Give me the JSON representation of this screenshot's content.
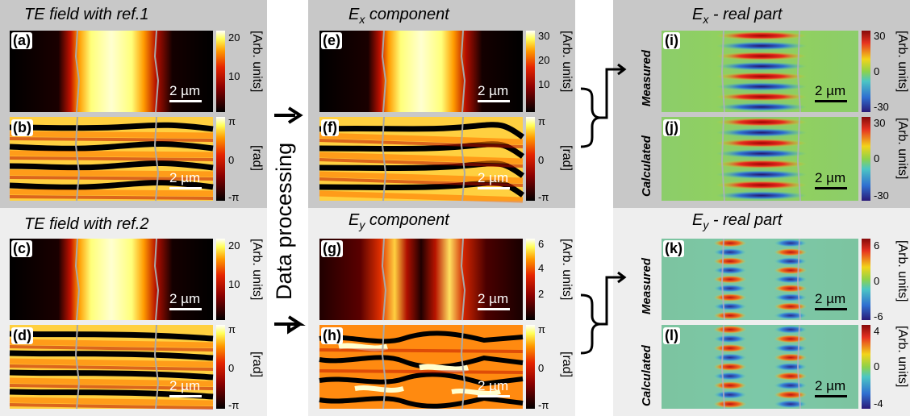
{
  "group_titles": {
    "te_ref1": "TE field with ref.1",
    "te_ref2": "TE field with ref.2",
    "ex_component_main": "E",
    "ex_component_sub": "x",
    "ex_component_rest": " component",
    "ey_component_main": "E",
    "ey_component_sub": "y",
    "ey_component_rest": " component",
    "ex_real_main": "E",
    "ex_real_sub": "x",
    "ex_real_rest": " - real part",
    "ey_real_main": "E",
    "ey_real_sub": "y",
    "ey_real_rest": " - real part"
  },
  "panel_tags": [
    "(a)",
    "(b)",
    "(c)",
    "(d)",
    "(e)",
    "(f)",
    "(g)",
    "(h)",
    "(i)",
    "(j)",
    "(k)",
    "(l)"
  ],
  "scale_bar": "2 µm",
  "process_label": "Data processing",
  "row_labels": {
    "measured": "Measured",
    "calculated": "Calculated"
  },
  "units": {
    "amplitude": "[Arb. units]",
    "phase": "[rad]"
  },
  "colorbar_ticks": {
    "a": [
      "20",
      "10"
    ],
    "c": [
      "20",
      "10"
    ],
    "e": [
      "30",
      "20",
      "10"
    ],
    "g": [
      "6",
      "4",
      "2"
    ],
    "phase": [
      "π",
      "0",
      "-π"
    ],
    "i": [
      "30",
      "0",
      "-30"
    ],
    "j": [
      "30",
      "0",
      "-30"
    ],
    "k": [
      "6",
      "0",
      "-6"
    ],
    "l": [
      "4",
      "0",
      "-4"
    ]
  },
  "colors": {
    "group_bg": "#c8c8c8",
    "group_bg_light": "#eeeeee",
    "hot_colormap": [
      "#000000",
      "#7a0000",
      "#e01e00",
      "#ff9a00",
      "#ffff60",
      "#ffffff"
    ],
    "jet_colormap": [
      "#2a1a78",
      "#2f74d0",
      "#4ac4c0",
      "#8cd24a",
      "#f0d21a",
      "#e83020",
      "#8a0a0a"
    ],
    "field_green": "#8ccd6a"
  }
}
